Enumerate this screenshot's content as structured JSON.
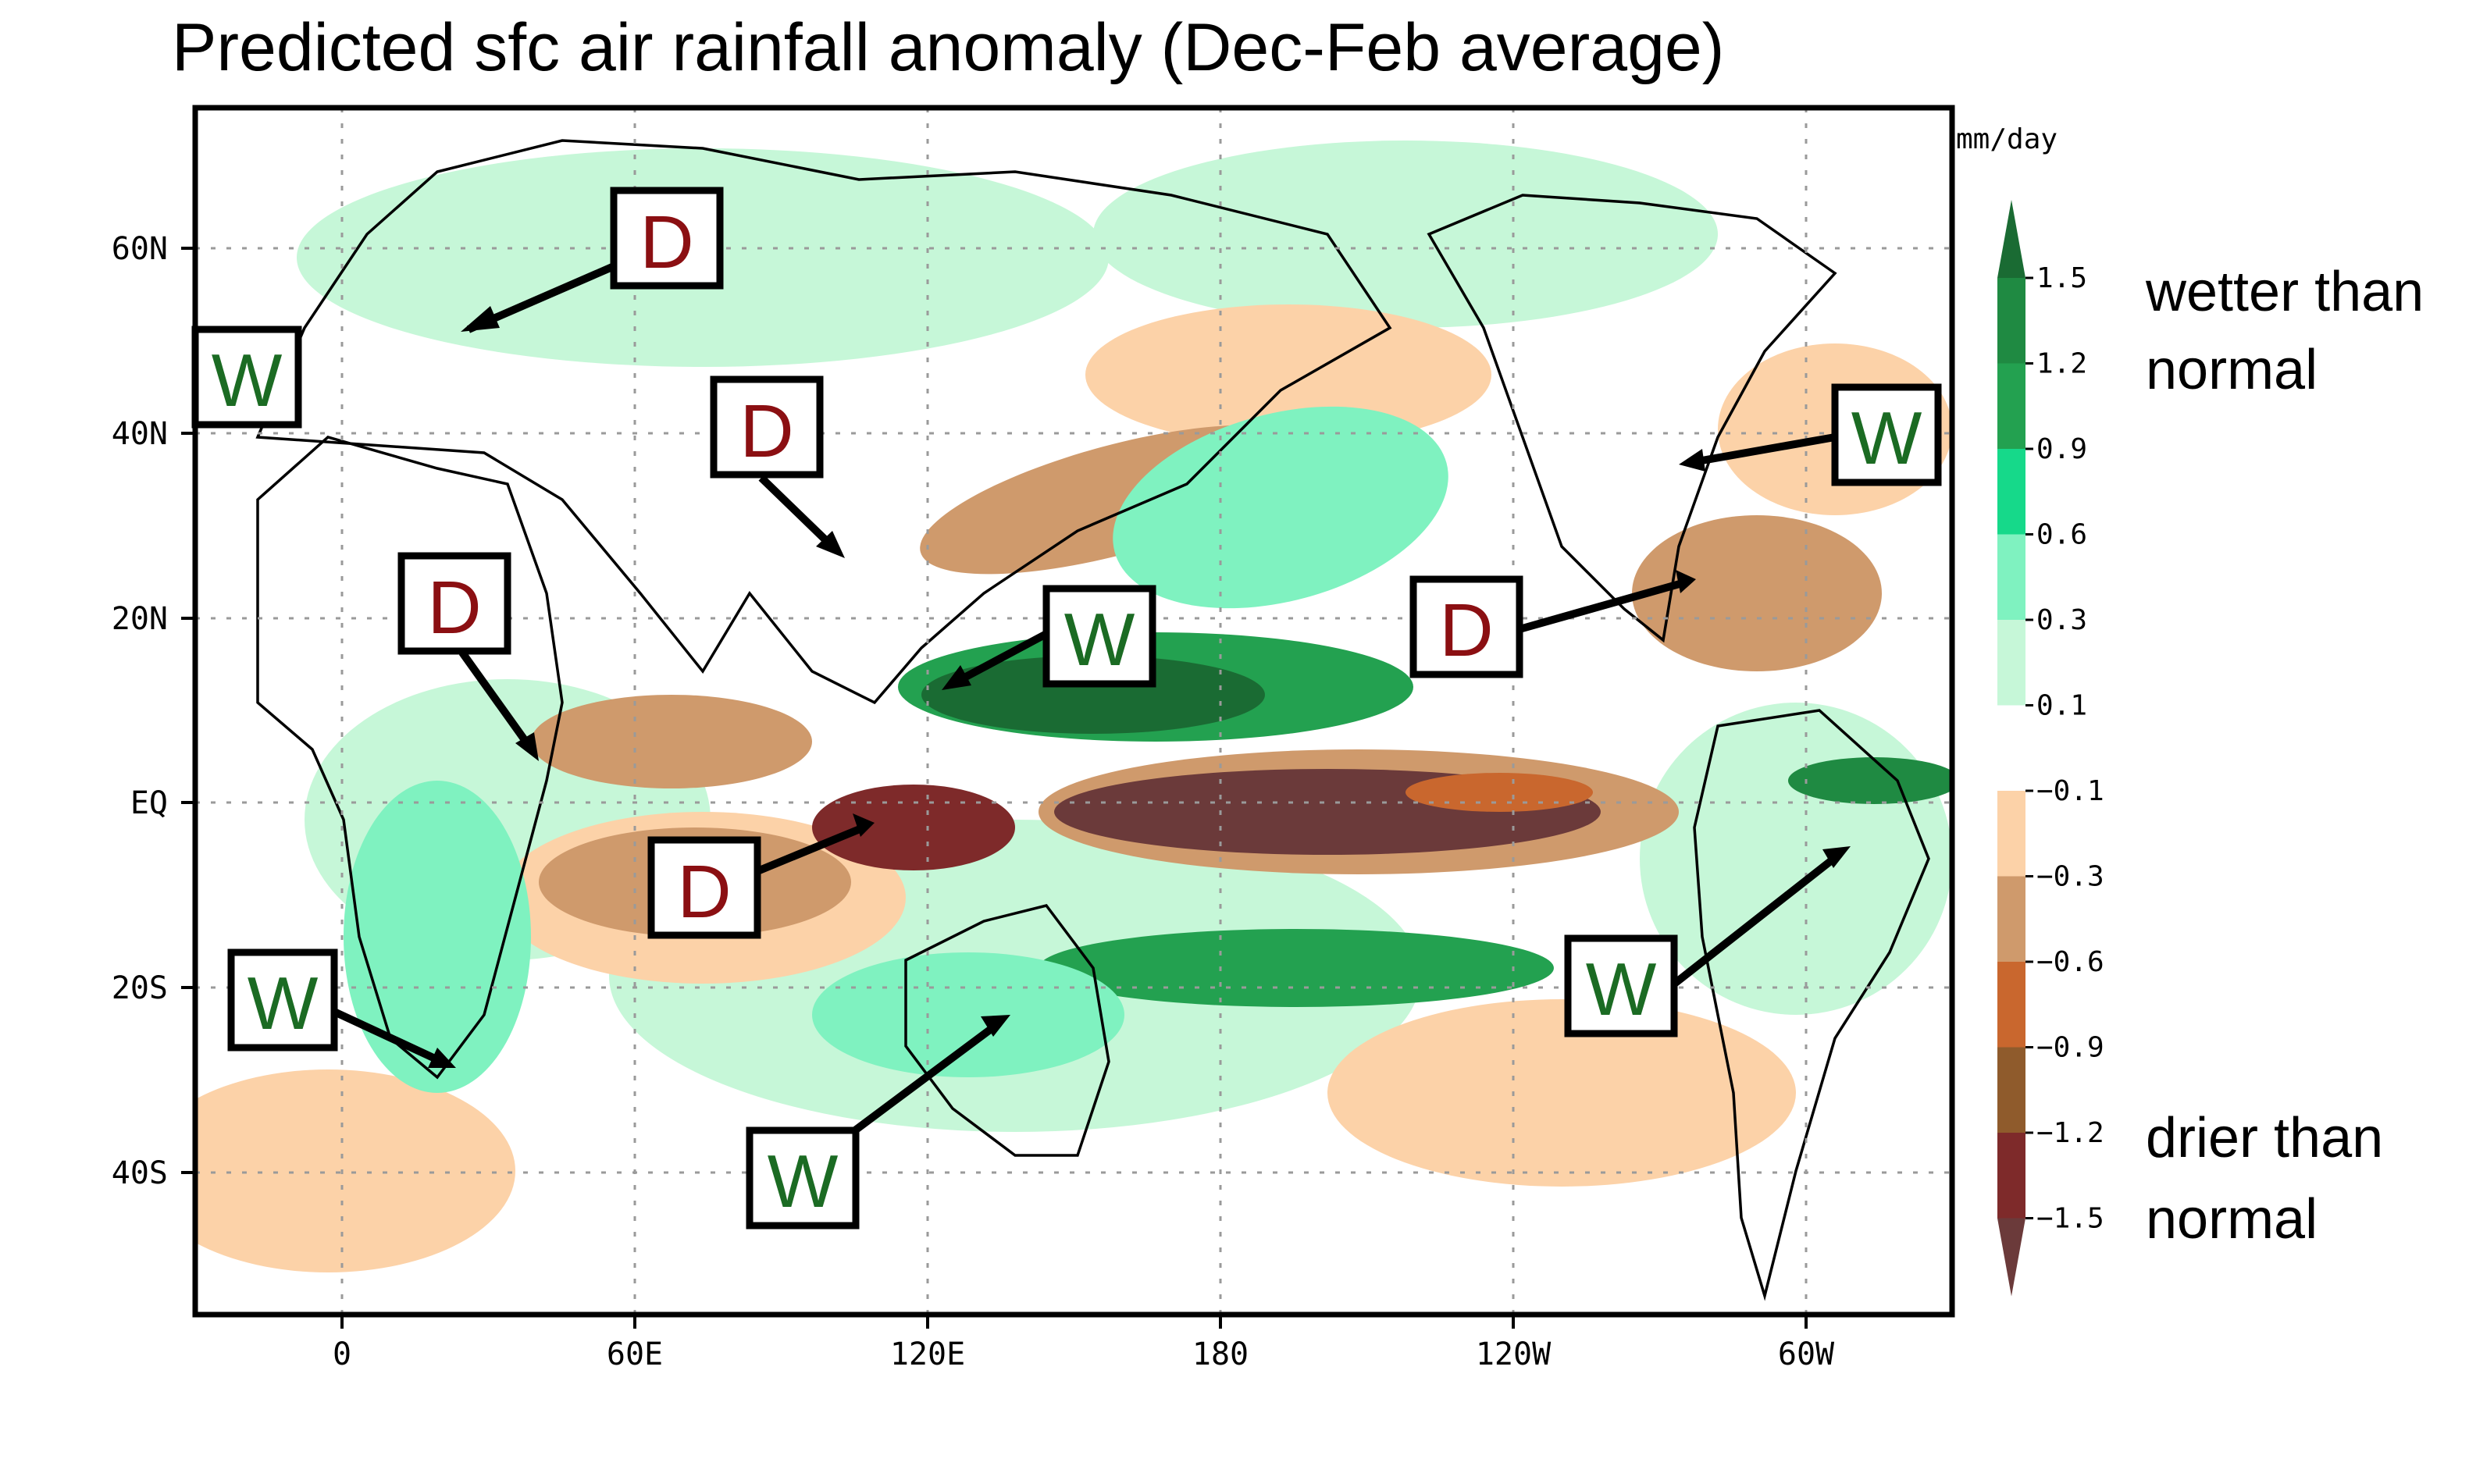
{
  "title": "Predicted sfc air rainfall anomaly (Dec-Feb average)",
  "units": "mm/day",
  "lat_ticks": [
    "60N",
    "40N",
    "20N",
    "EQ",
    "20S",
    "40S"
  ],
  "lon_ticks": [
    "0",
    "60E",
    "120E",
    "180",
    "120W",
    "60W"
  ],
  "colorbar": {
    "levels": [
      "1.5",
      "1.2",
      "0.9",
      "0.6",
      "0.3",
      "0.1",
      "−0.1",
      "−0.3",
      "−0.6",
      "−0.9",
      "−1.2",
      "−1.5"
    ],
    "colors": [
      "#1a6b33",
      "#1f8a42",
      "#23a150",
      "#16d98a",
      "#7ff2c0",
      "#c6f7d8",
      "#ffffff",
      "#fcd2a8",
      "#cf9a6c",
      "#c9672e",
      "#8f5b2c",
      "#7e2a2a",
      "#6b3a3a"
    ]
  },
  "legend": {
    "wet_line1": "wetter than",
    "wet_line2": "normal",
    "dry_line1": "drier than",
    "dry_line2": "normal"
  },
  "wet_color": "#1b6b23",
  "dry_color": "#8b0f12",
  "markers": [
    {
      "id": "europe",
      "letter": "D",
      "kind": "dry"
    },
    {
      "id": "west-europe",
      "letter": "W",
      "kind": "wet"
    },
    {
      "id": "china",
      "letter": "D",
      "kind": "dry"
    },
    {
      "id": "east-africa",
      "letter": "D",
      "kind": "dry"
    },
    {
      "id": "philippines",
      "letter": "W",
      "kind": "wet"
    },
    {
      "id": "indonesia",
      "letter": "D",
      "kind": "dry"
    },
    {
      "id": "south-africa",
      "letter": "W",
      "kind": "wet"
    },
    {
      "id": "australia",
      "letter": "W",
      "kind": "wet"
    },
    {
      "id": "us-east",
      "letter": "W",
      "kind": "wet"
    },
    {
      "id": "florida",
      "letter": "D",
      "kind": "dry"
    },
    {
      "id": "brazil",
      "letter": "W",
      "kind": "wet"
    }
  ]
}
